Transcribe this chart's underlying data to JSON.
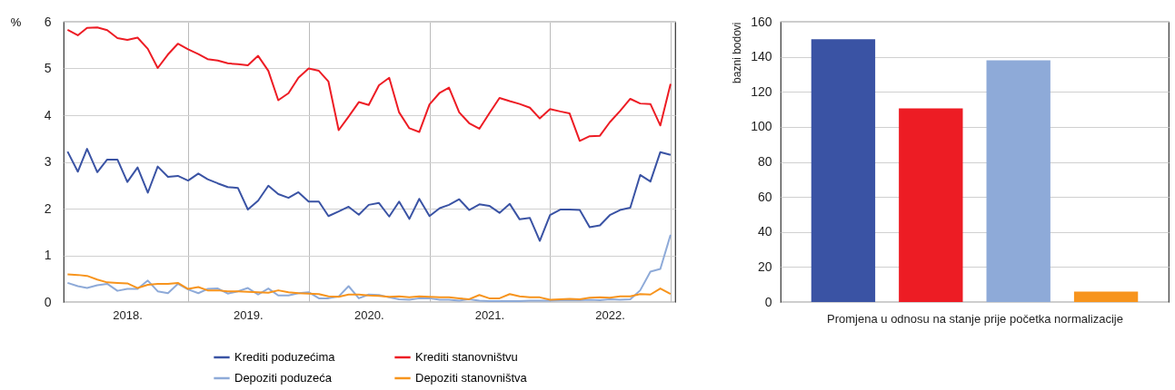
{
  "chart_data": [
    {
      "type": "line",
      "ylabel": "%",
      "grid": true,
      "legend": "bottom",
      "marker": "none",
      "x": [
        "2018-01",
        "2018-02",
        "2018-03",
        "2018-04",
        "2018-05",
        "2018-06",
        "2018-07",
        "2018-08",
        "2018-09",
        "2018-10",
        "2018-11",
        "2018-12",
        "2019-01",
        "2019-02",
        "2019-03",
        "2019-04",
        "2019-05",
        "2019-06",
        "2019-07",
        "2019-08",
        "2019-09",
        "2019-10",
        "2019-11",
        "2019-12",
        "2020-01",
        "2020-02",
        "2020-03",
        "2020-04",
        "2020-05",
        "2020-06",
        "2020-07",
        "2020-08",
        "2020-09",
        "2020-10",
        "2020-11",
        "2020-12",
        "2021-01",
        "2021-02",
        "2021-03",
        "2021-04",
        "2021-05",
        "2021-06",
        "2021-07",
        "2021-08",
        "2021-09",
        "2021-10",
        "2021-11",
        "2021-12",
        "2022-01",
        "2022-02",
        "2022-03",
        "2022-04",
        "2022-05",
        "2022-06",
        "2022-07",
        "2022-08",
        "2022-09",
        "2022-10",
        "2022-11",
        "2022-12",
        "2023-01"
      ],
      "xlim": [
        "2017-12-20",
        "2023-01-15"
      ],
      "xticks": [
        {
          "value": "2018-07-01",
          "label": "2018."
        },
        {
          "value": "2019-01-01",
          "label": null
        },
        {
          "value": "2019-07-01",
          "label": "2019."
        },
        {
          "value": "2020-01-01",
          "label": null
        },
        {
          "value": "2020-07-01",
          "label": "2020."
        },
        {
          "value": "2021-01-01",
          "label": null
        },
        {
          "value": "2021-07-01",
          "label": "2021."
        },
        {
          "value": "2022-01-01",
          "label": null
        },
        {
          "value": "2022-07-01",
          "label": "2022."
        },
        {
          "value": "2023-01-01",
          "label": null
        }
      ],
      "ylim": [
        0,
        6
      ],
      "yticks": [
        0,
        1,
        2,
        3,
        4,
        5,
        6
      ],
      "series": [
        {
          "name": "Krediti poduzećima",
          "color": "#3a53a4",
          "values": [
            3.22,
            2.79,
            3.28,
            2.78,
            3.05,
            3.05,
            2.57,
            2.88,
            2.34,
            2.9,
            2.68,
            2.7,
            2.6,
            2.75,
            2.63,
            2.54,
            2.46,
            2.44,
            1.98,
            2.17,
            2.49,
            2.31,
            2.23,
            2.35,
            2.15,
            2.15,
            1.84,
            1.94,
            2.04,
            1.87,
            2.08,
            2.12,
            1.83,
            2.15,
            1.78,
            2.21,
            1.84,
            2.01,
            2.08,
            2.2,
            1.97,
            2.09,
            2.06,
            1.91,
            2.1,
            1.77,
            1.8,
            1.31,
            1.86,
            1.98,
            1.98,
            1.97,
            1.6,
            1.64,
            1.86,
            1.97,
            2.02,
            2.72,
            2.58,
            3.21,
            3.15
          ]
        },
        {
          "name": "Krediti stanovništvu",
          "color": "#ed1c24",
          "values": [
            5.83,
            5.71,
            5.87,
            5.88,
            5.82,
            5.65,
            5.61,
            5.66,
            5.42,
            5.01,
            5.3,
            5.53,
            5.41,
            5.31,
            5.2,
            5.17,
            5.11,
            5.09,
            5.07,
            5.27,
            4.95,
            4.32,
            4.47,
            4.8,
            5.0,
            4.95,
            4.72,
            3.68,
            3.97,
            4.28,
            4.22,
            4.64,
            4.8,
            4.06,
            3.72,
            3.64,
            4.23,
            4.48,
            4.59,
            4.06,
            3.83,
            3.71,
            4.04,
            4.37,
            4.3,
            4.24,
            4.16,
            3.93,
            4.13,
            4.08,
            4.04,
            3.45,
            3.55,
            3.56,
            3.85,
            4.09,
            4.35,
            4.25,
            4.24,
            3.78,
            4.67
          ]
        },
        {
          "name": "Depoziti poduzeća",
          "color": "#8eaad8",
          "values": [
            0.41,
            0.34,
            0.3,
            0.36,
            0.39,
            0.24,
            0.28,
            0.28,
            0.46,
            0.23,
            0.19,
            0.39,
            0.27,
            0.19,
            0.28,
            0.29,
            0.18,
            0.23,
            0.3,
            0.16,
            0.29,
            0.14,
            0.14,
            0.19,
            0.21,
            0.08,
            0.08,
            0.12,
            0.34,
            0.08,
            0.16,
            0.15,
            0.1,
            0.06,
            0.05,
            0.08,
            0.08,
            0.05,
            0.05,
            0.03,
            0.06,
            0.03,
            0.02,
            0.02,
            0.02,
            0.02,
            0.03,
            0.03,
            0.03,
            0.04,
            0.04,
            0.04,
            0.05,
            0.04,
            0.06,
            0.05,
            0.06,
            0.25,
            0.65,
            0.71,
            1.44
          ]
        },
        {
          "name": "Depoziti stanovništva",
          "color": "#f7941d",
          "values": [
            0.59,
            0.58,
            0.56,
            0.48,
            0.42,
            0.41,
            0.4,
            0.3,
            0.37,
            0.39,
            0.39,
            0.41,
            0.28,
            0.32,
            0.25,
            0.25,
            0.23,
            0.23,
            0.22,
            0.21,
            0.2,
            0.25,
            0.21,
            0.19,
            0.18,
            0.17,
            0.12,
            0.11,
            0.16,
            0.16,
            0.14,
            0.13,
            0.11,
            0.12,
            0.1,
            0.12,
            0.11,
            0.1,
            0.1,
            0.08,
            0.06,
            0.15,
            0.08,
            0.08,
            0.17,
            0.12,
            0.1,
            0.1,
            0.05,
            0.06,
            0.07,
            0.06,
            0.09,
            0.1,
            0.09,
            0.12,
            0.12,
            0.17,
            0.16,
            0.29,
            0.17
          ]
        }
      ]
    },
    {
      "type": "bar",
      "ylabel": "bazni bodovi",
      "xlabel": "Promjena u odnosu na stanje prije početka normalizacije",
      "grid": "y",
      "categories": [
        null,
        null,
        null,
        null
      ],
      "values": [
        150,
        110.5,
        138,
        6
      ],
      "colors": [
        "#3a53a4",
        "#ed1c24",
        "#8eaad8",
        "#f7941d"
      ],
      "ylim": [
        0,
        160
      ],
      "yticks": [
        0,
        20,
        40,
        60,
        80,
        100,
        120,
        140,
        160
      ]
    }
  ]
}
